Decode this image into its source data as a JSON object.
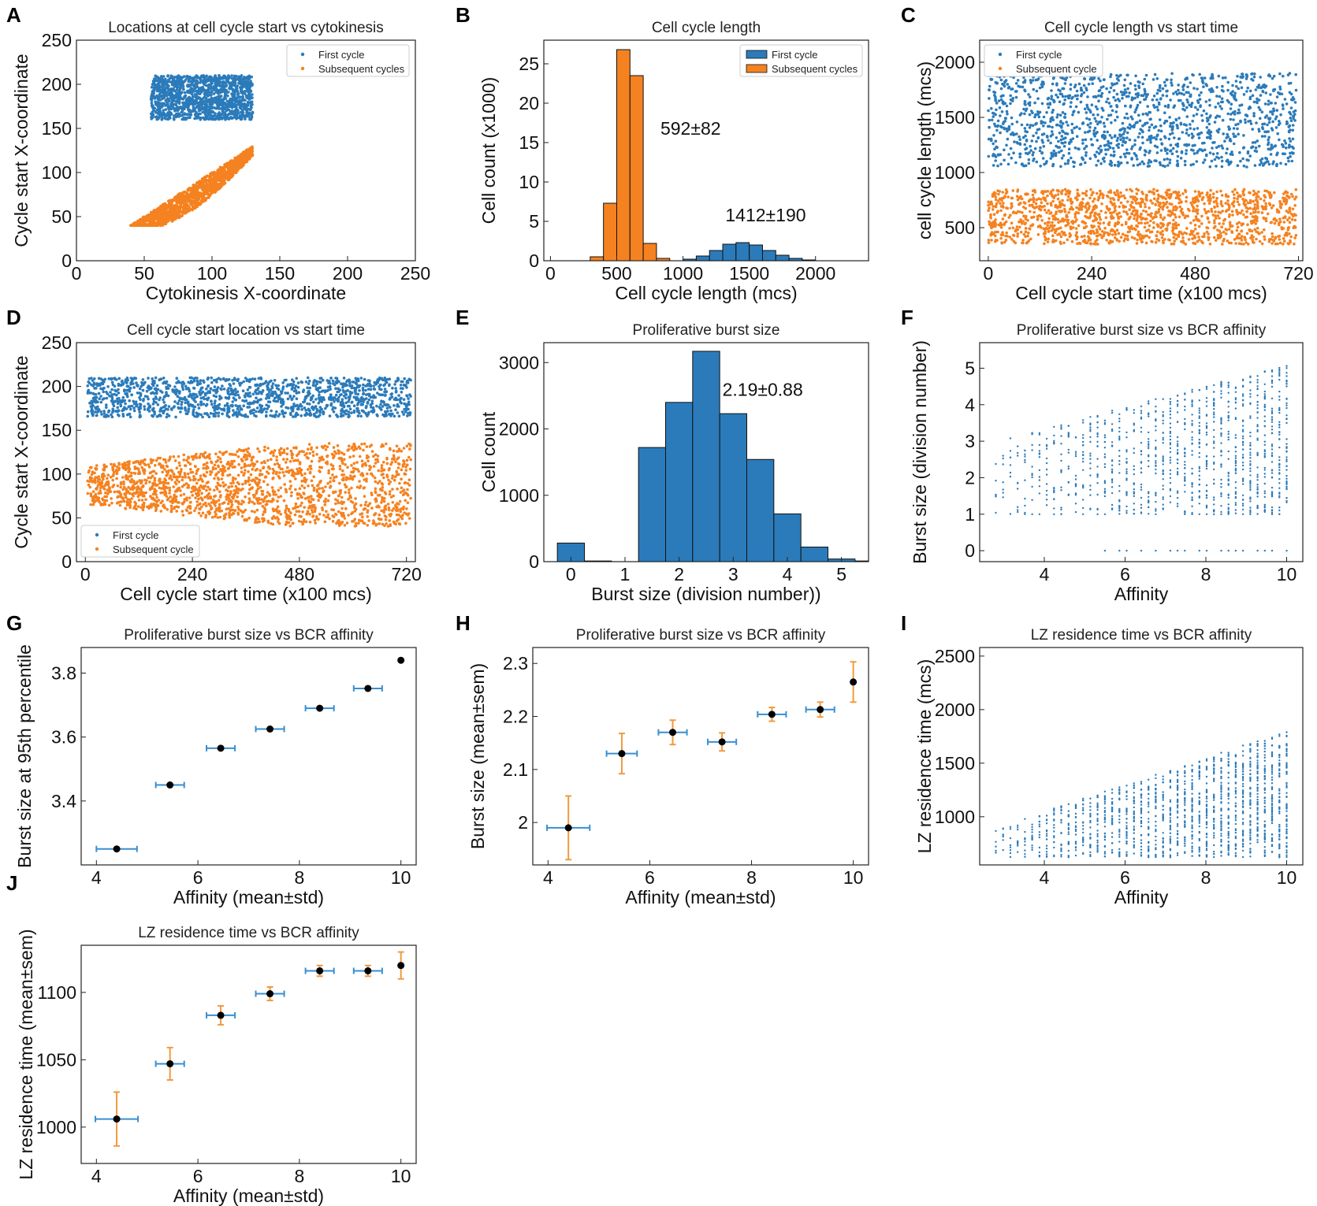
{
  "figure": {
    "colors": {
      "blue": "#2b7bba",
      "orange": "#f58220",
      "black": "#000000",
      "errblue": "#3a8fd0",
      "errorange": "#f09a3e"
    }
  },
  "chart_data": [
    {
      "id": "A",
      "letter": "A",
      "type": "scatter",
      "title": "Locations at cell cycle start vs cytokinesis",
      "xlabel": "Cytokinesis X-coordinate",
      "ylabel": "Cycle start X-coordinate",
      "xlim": [
        0,
        250
      ],
      "ylim": [
        0,
        250
      ],
      "xticks": [
        0,
        50,
        100,
        150,
        200,
        250
      ],
      "yticks": [
        0,
        50,
        100,
        150,
        200,
        250
      ],
      "legend": [
        "First cycle",
        "Subsequent cycles"
      ],
      "legend_loc": "top-right",
      "series": [
        {
          "name": "First cycle",
          "color": "blue",
          "cluster": {
            "kind": "box",
            "x": [
              55,
              130
            ],
            "y": [
              160,
              210
            ]
          }
        },
        {
          "name": "Subsequent cycles",
          "color": "orange",
          "cluster": {
            "kind": "band",
            "x": [
              40,
              130
            ],
            "ybase": [
              40,
              130
            ],
            "spread": 28
          }
        }
      ]
    },
    {
      "id": "B",
      "letter": "B",
      "type": "bar",
      "title": "Cell cycle length",
      "xlabel": "Cell cycle length (mcs)",
      "ylabel": "Cell count (x1000)",
      "xlim": [
        -50,
        2400
      ],
      "ylim": [
        0,
        28
      ],
      "xticks": [
        0,
        500,
        1000,
        1500,
        2000
      ],
      "yticks": [
        0,
        5,
        10,
        15,
        20,
        25
      ],
      "legend": [
        "First cycle",
        "Subsequent cycles"
      ],
      "legend_loc": "top-right",
      "series": [
        {
          "name": "First cycle",
          "color": "blue",
          "binStart": 1000,
          "binWidth": 100,
          "values": [
            0.2,
            0.6,
            1.3,
            2.1,
            2.3,
            2.0,
            1.3,
            0.7,
            0.3,
            0.1
          ]
        },
        {
          "name": "Subsequent cycles",
          "color": "orange",
          "binStart": 300,
          "binWidth": 100,
          "values": [
            0.5,
            7.3,
            26.8,
            23.5,
            2.2,
            0.3
          ]
        }
      ],
      "annotations": [
        {
          "text": "592±82",
          "x": 830,
          "y": 16
        },
        {
          "text": "1412±190",
          "x": 1320,
          "y": 5
        }
      ]
    },
    {
      "id": "C",
      "letter": "C",
      "type": "scatter",
      "title": "Cell cycle length vs start time",
      "xlabel": "Cell cycle start time (x100 mcs)",
      "ylabel": "cell cycle length (mcs)",
      "xlim": [
        -20,
        730
      ],
      "ylim": [
        200,
        2200
      ],
      "xticks": [
        0,
        240,
        480,
        720
      ],
      "yticks": [
        500,
        1000,
        1500,
        2000
      ],
      "legend": [
        "First cycle",
        "Subsequent cycle"
      ],
      "legend_loc": "top-left",
      "series": [
        {
          "name": "First cycle",
          "color": "blue",
          "cluster": {
            "kind": "box",
            "x": [
              0,
              715
            ],
            "y": [
              1050,
              1900
            ]
          }
        },
        {
          "name": "Subsequent cycle",
          "color": "orange",
          "cluster": {
            "kind": "box",
            "x": [
              0,
              715
            ],
            "y": [
              350,
              850
            ]
          }
        }
      ]
    },
    {
      "id": "D",
      "letter": "D",
      "type": "scatter",
      "title": "Cell cycle start location vs start time",
      "xlabel": "Cell cycle start time (x100 mcs)",
      "ylabel": "Cycle start X-coordinate",
      "xlim": [
        -20,
        740
      ],
      "ylim": [
        0,
        250
      ],
      "xticks": [
        0,
        240,
        480,
        720
      ],
      "yticks": [
        0,
        50,
        100,
        150,
        200,
        250
      ],
      "legend": [
        "First cycle",
        "Subsequent cycle"
      ],
      "legend_loc": "bottom-left",
      "series": [
        {
          "name": "First cycle",
          "color": "blue",
          "cluster": {
            "kind": "box",
            "x": [
              5,
              730
            ],
            "y": [
              165,
              210
            ]
          }
        },
        {
          "name": "Subsequent cycle",
          "color": "orange",
          "cluster": {
            "kind": "fan",
            "x": [
              5,
              730
            ],
            "y0": [
              65,
              110
            ],
            "y1": [
              40,
              135
            ]
          }
        }
      ]
    },
    {
      "id": "E",
      "letter": "E",
      "type": "bar",
      "title": "Proliferative burst size",
      "xlabel": "Burst size (division number))",
      "ylabel": "Cell count",
      "xlim": [
        -0.5,
        5.5
      ],
      "ylim": [
        0,
        3300
      ],
      "xticks": [
        0,
        1,
        2,
        3,
        4,
        5
      ],
      "yticks": [
        0,
        1000,
        2000,
        3000
      ],
      "series": [
        {
          "name": "Burst size",
          "color": "blue",
          "binStart": -0.25,
          "binWidth": 0.5,
          "values": [
            280,
            10,
            0,
            1720,
            2400,
            3170,
            2230,
            1540,
            720,
            220,
            40,
            10
          ]
        }
      ],
      "annotations": [
        {
          "text": "2.19±0.88",
          "x": 2.8,
          "y": 2500
        }
      ]
    },
    {
      "id": "F",
      "letter": "F",
      "type": "scatter",
      "title": "Proliferative burst size vs BCR affinity",
      "xlabel": "Affinity",
      "ylabel": "Burst size (division number)",
      "xlim": [
        2.4,
        10.4
      ],
      "ylim": [
        -0.3,
        5.7
      ],
      "xticks": [
        4,
        6,
        8,
        10
      ],
      "yticks": [
        0,
        1,
        2,
        3,
        4,
        5
      ],
      "series": [
        {
          "name": "Burst size",
          "color": "blue",
          "cluster": {
            "kind": "columns",
            "amin": 2.8,
            "amax": 10,
            "step": 0.18,
            "yMinLow": 1,
            "yMaxLow": 3,
            "yMaxHigh": 5.1
          }
        }
      ]
    },
    {
      "id": "G",
      "letter": "G",
      "type": "errorbar",
      "title": "Proliferative burst size vs BCR affinity",
      "xlabel": "Affinity (mean±std)",
      "ylabel": "Burst size at 95th percentile",
      "xlim": [
        3.7,
        10.3
      ],
      "ylim": [
        3.2,
        3.88
      ],
      "xticks": [
        4,
        6,
        8,
        10
      ],
      "yticks": [
        3.4,
        3.6,
        3.8
      ],
      "points": [
        {
          "x": 4.4,
          "y": 3.25,
          "xerr": 0.4,
          "yerr": 0
        },
        {
          "x": 5.45,
          "y": 3.45,
          "xerr": 0.28,
          "yerr": 0
        },
        {
          "x": 6.45,
          "y": 3.565,
          "xerr": 0.28,
          "yerr": 0
        },
        {
          "x": 7.42,
          "y": 3.625,
          "xerr": 0.28,
          "yerr": 0
        },
        {
          "x": 8.4,
          "y": 3.69,
          "xerr": 0.28,
          "yerr": 0
        },
        {
          "x": 9.35,
          "y": 3.752,
          "xerr": 0.28,
          "yerr": 0
        },
        {
          "x": 10.0,
          "y": 3.84,
          "xerr": 0,
          "yerr": 0
        }
      ]
    },
    {
      "id": "H",
      "letter": "H",
      "type": "errorbar",
      "title": "Proliferative burst size vs BCR affinity",
      "xlabel": "Affinity (mean±std)",
      "ylabel": "Burst size (mean±sem)",
      "xlim": [
        3.7,
        10.3
      ],
      "ylim": [
        1.92,
        2.33
      ],
      "xticks": [
        4,
        6,
        8,
        10
      ],
      "yticks": [
        2.0,
        2.1,
        2.2,
        2.3
      ],
      "points": [
        {
          "x": 4.4,
          "y": 1.99,
          "xerr": 0.42,
          "yerr": 0.06
        },
        {
          "x": 5.45,
          "y": 2.13,
          "xerr": 0.3,
          "yerr": 0.038
        },
        {
          "x": 6.45,
          "y": 2.17,
          "xerr": 0.28,
          "yerr": 0.023
        },
        {
          "x": 7.42,
          "y": 2.152,
          "xerr": 0.28,
          "yerr": 0.017
        },
        {
          "x": 8.4,
          "y": 2.204,
          "xerr": 0.28,
          "yerr": 0.013
        },
        {
          "x": 9.35,
          "y": 2.213,
          "xerr": 0.28,
          "yerr": 0.014
        },
        {
          "x": 10.0,
          "y": 2.265,
          "xerr": 0,
          "yerr": 0.038
        }
      ]
    },
    {
      "id": "I",
      "letter": "I",
      "type": "scatter",
      "title": "LZ residence time vs BCR affinity",
      "xlabel": "Affinity",
      "ylabel": "LZ residence time (mcs)",
      "xlim": [
        2.4,
        10.4
      ],
      "ylim": [
        550,
        2580
      ],
      "xticks": [
        4,
        6,
        8,
        10
      ],
      "yticks": [
        1000,
        1500,
        2000,
        2500
      ],
      "series": [
        {
          "name": "LZ residence time",
          "color": "blue",
          "cluster": {
            "kind": "lzcolumns",
            "amin": 2.8,
            "amax": 10,
            "step": 0.18,
            "yMin": 620,
            "yTopLow": 900,
            "yTopHigh": 1800
          }
        }
      ]
    },
    {
      "id": "J",
      "letter": "J",
      "type": "errorbar",
      "title": "LZ residence time vs BCR affinity",
      "xlabel": "Affinity (mean±std)",
      "ylabel": "LZ residence time (mean±sem)",
      "xlim": [
        3.7,
        10.3
      ],
      "ylim": [
        973,
        1135
      ],
      "xticks": [
        4,
        6,
        8,
        10
      ],
      "yticks": [
        1000,
        1050,
        1100
      ],
      "points": [
        {
          "x": 4.4,
          "y": 1006,
          "xerr": 0.42,
          "yerr": 20
        },
        {
          "x": 5.45,
          "y": 1047,
          "xerr": 0.28,
          "yerr": 12
        },
        {
          "x": 6.45,
          "y": 1083,
          "xerr": 0.28,
          "yerr": 7
        },
        {
          "x": 7.42,
          "y": 1099,
          "xerr": 0.28,
          "yerr": 5
        },
        {
          "x": 8.4,
          "y": 1116,
          "xerr": 0.28,
          "yerr": 4
        },
        {
          "x": 9.35,
          "y": 1116,
          "xerr": 0.28,
          "yerr": 4
        },
        {
          "x": 10.0,
          "y": 1120,
          "xerr": 0,
          "yerr": 10
        }
      ]
    }
  ]
}
